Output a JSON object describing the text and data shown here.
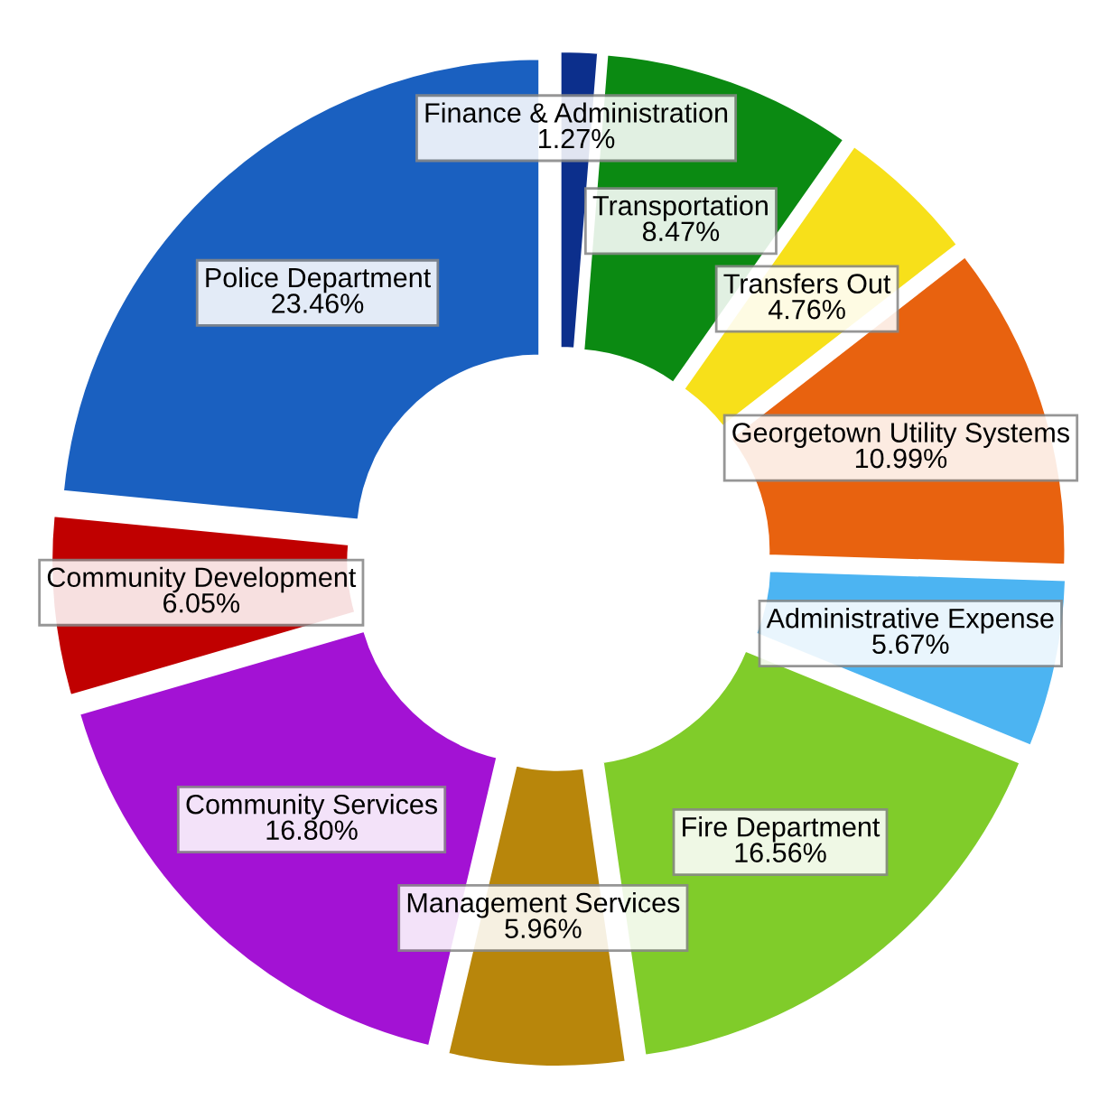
{
  "chart_data": {
    "type": "donut",
    "categories": [
      "Finance & Administration",
      "Transportation",
      "Transfers Out",
      "Georgetown Utility Systems",
      "Administrative Expense",
      "Fire Department",
      "Management Services",
      "Community Services",
      "Community Development",
      "Police Department"
    ],
    "values": [
      1.27,
      8.47,
      4.76,
      10.99,
      5.67,
      16.56,
      5.96,
      16.8,
      6.05,
      23.46
    ],
    "value_labels": [
      "1.27%",
      "8.47%",
      "4.76%",
      "10.99%",
      "5.67%",
      "16.56%",
      "5.96%",
      "16.80%",
      "6.05%",
      "23.46%"
    ],
    "colors": [
      "#0c2f8c",
      "#0b8a12",
      "#f7e01a",
      "#e8620f",
      "#4cb4f2",
      "#80cc2a",
      "#b8860b",
      "#a312d4",
      "#c00000",
      "#1a60c0"
    ],
    "legend": false
  }
}
